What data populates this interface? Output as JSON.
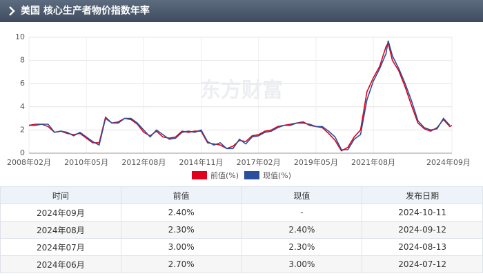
{
  "header": {
    "title": "美国 核心生产者物价指数年率"
  },
  "chart_data": {
    "type": "line",
    "watermark": "东方财富",
    "x": [
      "2008年02月",
      "2008年05月",
      "2008年08月",
      "2008年11月",
      "2009年02月",
      "2009年05月",
      "2009年08月",
      "2009年11月",
      "2010年02月",
      "2010年05月",
      "2010年08月",
      "2010年11月",
      "2011年02月",
      "2011年05月",
      "2011年08月",
      "2011年11月",
      "2012年02月",
      "2012年05月",
      "2012年08月",
      "2012年11月",
      "2013年02月",
      "2013年05月",
      "2013年08月",
      "2013年11月",
      "2014年02月",
      "2014年05月",
      "2014年08月",
      "2014年11月",
      "2015年02月",
      "2015年05月",
      "2015年08月",
      "2015年11月",
      "2016年02月",
      "2016年05月",
      "2016年08月",
      "2016年11月",
      "2017年02月",
      "2017年05月",
      "2017年08月",
      "2017年11月",
      "2018年02月",
      "2018年05月",
      "2018年08月",
      "2018年11月",
      "2019年02月",
      "2019年05月",
      "2019年08月",
      "2019年11月",
      "2020年02月",
      "2020年05月",
      "2020年08月",
      "2020年11月",
      "2021年02月",
      "2021年05月",
      "2021年08月",
      "2021年11月",
      "2022年02月",
      "2022年03月",
      "2022年05月",
      "2022年08月",
      "2022年11月",
      "2023年02月",
      "2023年05月",
      "2023年08月",
      "2023年11月",
      "2024年02月",
      "2024年05月",
      "2024年08月",
      "2024年09月"
    ],
    "series": [
      {
        "name": "前值(%)",
        "color": "#e0001b",
        "values": [
          2.4,
          2.5,
          2.5,
          2.3,
          1.8,
          1.9,
          1.7,
          1.6,
          1.7,
          1.3,
          0.9,
          0.9,
          3.1,
          2.6,
          2.7,
          3.0,
          2.9,
          2.5,
          1.8,
          1.5,
          1.9,
          1.4,
          1.3,
          1.4,
          1.9,
          1.8,
          1.9,
          1.9,
          0.9,
          0.8,
          0.7,
          0.4,
          0.6,
          1.1,
          1.0,
          1.5,
          1.6,
          1.9,
          2.0,
          2.3,
          2.4,
          2.5,
          2.6,
          2.7,
          2.4,
          2.3,
          2.2,
          1.7,
          1.1,
          0.2,
          0.5,
          1.4,
          2.0,
          5.3,
          6.5,
          7.5,
          9.2,
          9.5,
          8.0,
          7.1,
          5.7,
          4.1,
          2.6,
          2.1,
          1.9,
          2.2,
          2.9,
          2.3,
          2.4
        ]
      },
      {
        "name": "现值(%)",
        "color": "#2b4f9a",
        "values": [
          2.4,
          2.4,
          2.5,
          2.5,
          1.8,
          1.9,
          1.8,
          1.5,
          1.8,
          1.4,
          1.0,
          0.7,
          3.0,
          2.6,
          2.6,
          3.0,
          3.0,
          2.6,
          2.0,
          1.4,
          2.0,
          1.6,
          1.2,
          1.3,
          1.8,
          1.9,
          1.8,
          2.0,
          1.0,
          0.7,
          0.9,
          0.4,
          0.4,
          1.2,
          0.8,
          1.4,
          1.5,
          1.8,
          1.9,
          2.2,
          2.4,
          2.4,
          2.6,
          2.6,
          2.5,
          2.3,
          2.3,
          1.9,
          1.4,
          0.3,
          0.3,
          1.2,
          1.6,
          4.6,
          6.2,
          7.3,
          8.6,
          9.7,
          8.4,
          7.3,
          6.0,
          4.5,
          2.8,
          2.2,
          2.0,
          2.1,
          3.0,
          2.4,
          null
        ]
      }
    ],
    "xlim": [
      "2008年02月",
      "2024年09月"
    ],
    "xticks": [
      "2008年02月",
      "2010年05月",
      "2012年08月",
      "2014年11月",
      "2017年02月",
      "2019年05月",
      "2021年08月",
      "2024年09月"
    ],
    "ylim": [
      0,
      10
    ],
    "yticks": [
      0,
      2,
      4,
      6,
      8,
      10
    ],
    "grid": true
  },
  "table": {
    "headers": [
      "时间",
      "前值",
      "现值",
      "发布日期"
    ],
    "rows": [
      [
        "2024年09月",
        "2.40%",
        "-",
        "2024-10-11"
      ],
      [
        "2024年08月",
        "2.30%",
        "2.40%",
        "2024-09-12"
      ],
      [
        "2024年07月",
        "3.00%",
        "2.30%",
        "2024-08-13"
      ],
      [
        "2024年06月",
        "2.70%",
        "3.00%",
        "2024-07-12"
      ]
    ]
  }
}
